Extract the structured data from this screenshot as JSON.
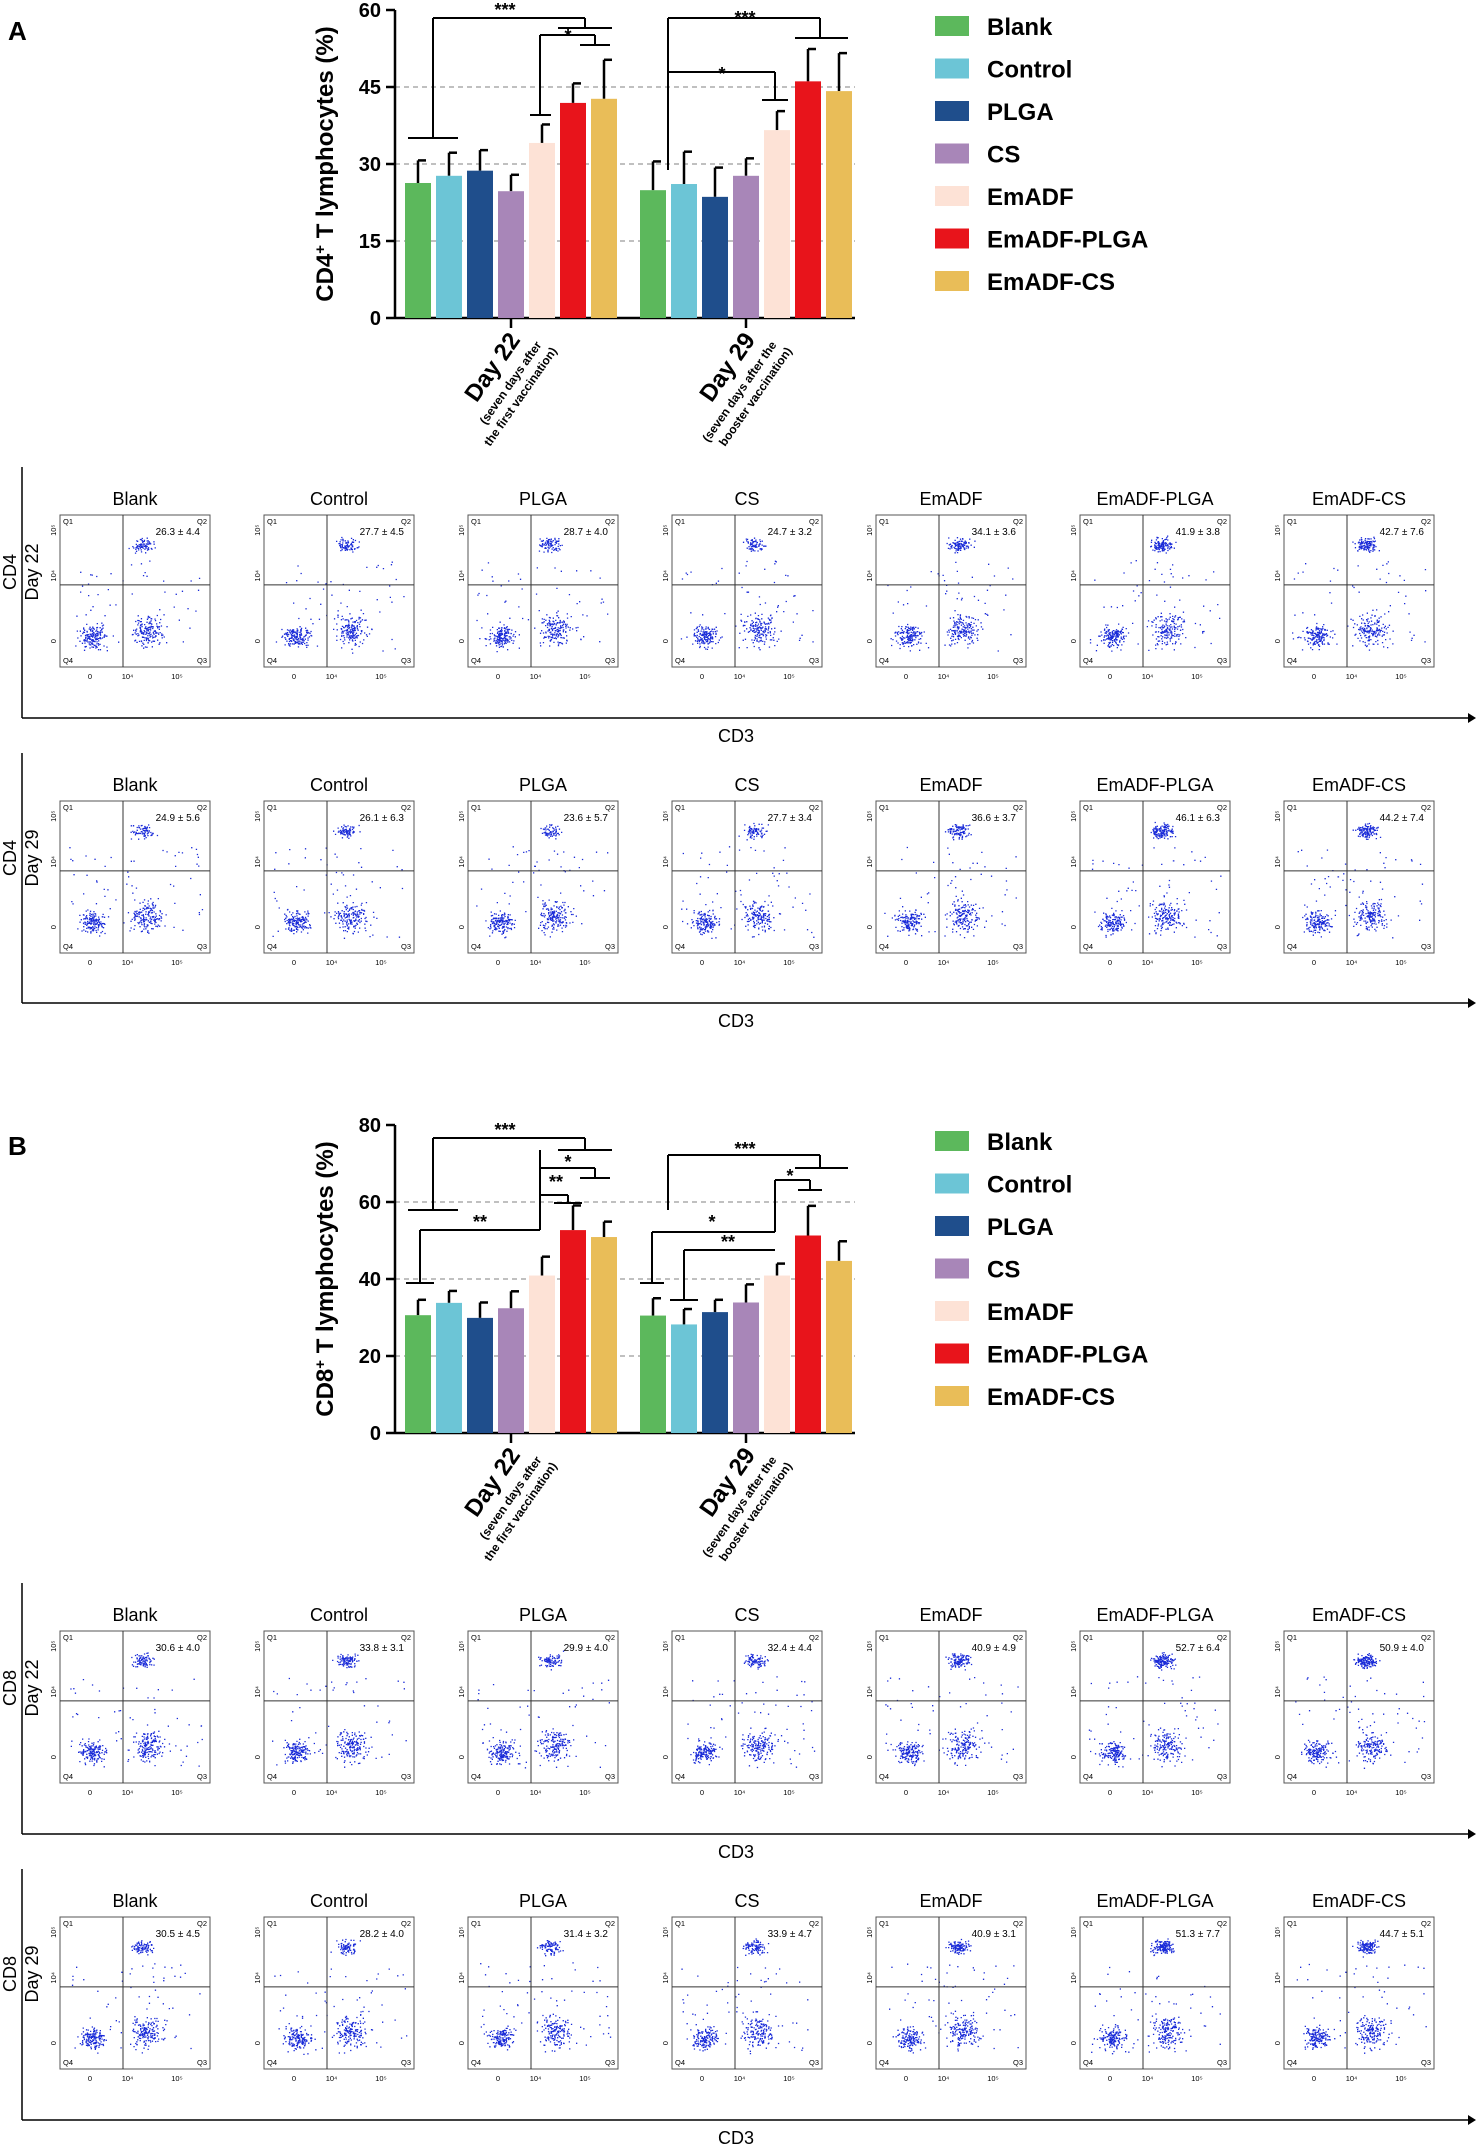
{
  "panels": [
    {
      "label": "A",
      "chart_data": {
        "type": "bar",
        "ylabel_main": "CD4",
        "ylabel_sup": "+",
        "ylabel_rest": " T lymphocytes (%)",
        "ylim": [
          0,
          60
        ],
        "yticks": [
          "0",
          "15",
          "30",
          "45",
          "60"
        ],
        "ytick_values": [
          0,
          15,
          30,
          45,
          60
        ],
        "gridlines": [
          15,
          30,
          45
        ],
        "groups": [
          {
            "label": "Day 22",
            "sub1": "(seven days after",
            "sub2": "the first vaccination)"
          },
          {
            "label": "Day 29",
            "sub1": "(seven days after the",
            "sub2": "booster vaccination)"
          }
        ],
        "series": [
          {
            "name": "Blank",
            "color": "#5cb85c",
            "values": [
              26.3,
              24.9
            ],
            "errors": [
              4.4,
              5.6
            ]
          },
          {
            "name": "Control",
            "color": "#6cc5d6",
            "values": [
              27.7,
              26.1
            ],
            "errors": [
              4.5,
              6.3
            ]
          },
          {
            "name": "PLGA",
            "color": "#1f4e8c",
            "values": [
              28.7,
              23.6
            ],
            "errors": [
              4.0,
              5.7
            ]
          },
          {
            "name": "CS",
            "color": "#a886b8",
            "values": [
              24.7,
              27.7
            ],
            "errors": [
              3.2,
              3.4
            ]
          },
          {
            "name": "EmADF",
            "color": "#fde2d6",
            "values": [
              34.1,
              36.6
            ],
            "errors": [
              3.6,
              3.7
            ]
          },
          {
            "name": "EmADF-PLGA",
            "color": "#e8141b",
            "values": [
              41.9,
              46.1
            ],
            "errors": [
              3.8,
              6.3
            ]
          },
          {
            "name": "EmADF-CS",
            "color": "#e9bd58",
            "values": [
              42.7,
              44.2
            ],
            "errors": [
              7.6,
              7.4
            ]
          }
        ],
        "significance": [
          "***",
          "*",
          "***",
          "*"
        ]
      },
      "flow": {
        "rows": [
          {
            "marker": "CD4",
            "day": "Day 22",
            "xlabel": "CD3",
            "values": [
              "26.3 ± 4.4",
              "27.7 ± 4.5",
              "28.7 ± 4.0",
              "24.7 ± 3.2",
              "34.1 ± 3.6",
              "41.9 ± 3.8",
              "42.7 ± 7.6"
            ]
          },
          {
            "marker": "CD4",
            "day": "Day 29",
            "xlabel": "CD3",
            "values": [
              "24.9 ± 5.6",
              "26.1 ± 6.3",
              "23.6 ± 5.7",
              "27.7 ± 3.4",
              "36.6 ± 3.7",
              "46.1 ± 6.3",
              "44.2 ± 7.4"
            ]
          }
        ]
      }
    },
    {
      "label": "B",
      "chart_data": {
        "type": "bar",
        "ylabel_main": "CD8",
        "ylabel_sup": "+",
        "ylabel_rest": " T lymphocytes (%)",
        "ylim": [
          0,
          80
        ],
        "yticks": [
          "0",
          "20",
          "40",
          "60",
          "80"
        ],
        "ytick_values": [
          0,
          20,
          40,
          60,
          80
        ],
        "gridlines": [
          20,
          40,
          60
        ],
        "groups": [
          {
            "label": "Day 22",
            "sub1": "(seven days after",
            "sub2": "the first vaccination)"
          },
          {
            "label": "Day 29",
            "sub1": "(seven days after the",
            "sub2": "booster vaccination)"
          }
        ],
        "series": [
          {
            "name": "Blank",
            "color": "#5cb85c",
            "values": [
              30.6,
              30.5
            ],
            "errors": [
              4.0,
              4.5
            ]
          },
          {
            "name": "Control",
            "color": "#6cc5d6",
            "values": [
              33.8,
              28.2
            ],
            "errors": [
              3.1,
              4.0
            ]
          },
          {
            "name": "PLGA",
            "color": "#1f4e8c",
            "values": [
              29.9,
              31.4
            ],
            "errors": [
              4.0,
              3.2
            ]
          },
          {
            "name": "CS",
            "color": "#a886b8",
            "values": [
              32.4,
              33.9
            ],
            "errors": [
              4.4,
              4.7
            ]
          },
          {
            "name": "EmADF",
            "color": "#fde2d6",
            "values": [
              40.9,
              40.9
            ],
            "errors": [
              4.9,
              3.1
            ]
          },
          {
            "name": "EmADF-PLGA",
            "color": "#e8141b",
            "values": [
              52.7,
              51.3
            ],
            "errors": [
              6.4,
              7.7
            ]
          },
          {
            "name": "EmADF-CS",
            "color": "#e9bd58",
            "values": [
              50.9,
              44.7
            ],
            "errors": [
              4.0,
              5.1
            ]
          }
        ],
        "significance": [
          "***",
          "*",
          "**",
          "**",
          "***",
          "*",
          "*",
          "**"
        ]
      },
      "flow": {
        "rows": [
          {
            "marker": "CD8",
            "day": "Day 22",
            "xlabel": "CD3",
            "values": [
              "30.6 ± 4.0",
              "33.8 ± 3.1",
              "29.9 ± 4.0",
              "32.4 ± 4.4",
              "40.9 ± 4.9",
              "52.7 ± 6.4",
              "50.9 ± 4.0"
            ]
          },
          {
            "marker": "CD8",
            "day": "Day 29",
            "xlabel": "CD3",
            "values": [
              "30.5 ± 4.5",
              "28.2 ± 4.0",
              "31.4 ± 3.2",
              "33.9 ± 4.7",
              "40.9 ± 3.1",
              "51.3 ± 7.7",
              "44.7 ± 5.1"
            ]
          }
        ]
      }
    }
  ],
  "flow_groups": [
    "Blank",
    "Control",
    "PLGA",
    "CS",
    "EmADF",
    "EmADF-PLGA",
    "EmADF-CS"
  ],
  "quadrants": [
    "Q1",
    "Q2",
    "Q3",
    "Q4"
  ],
  "flow_axis_ticks": [
    "0",
    "10⁴",
    "10⁵"
  ],
  "flow_yaxis_ticks": [
    "0",
    "10⁴",
    "10⁵"
  ],
  "scatter_color": "#1a2bd8"
}
